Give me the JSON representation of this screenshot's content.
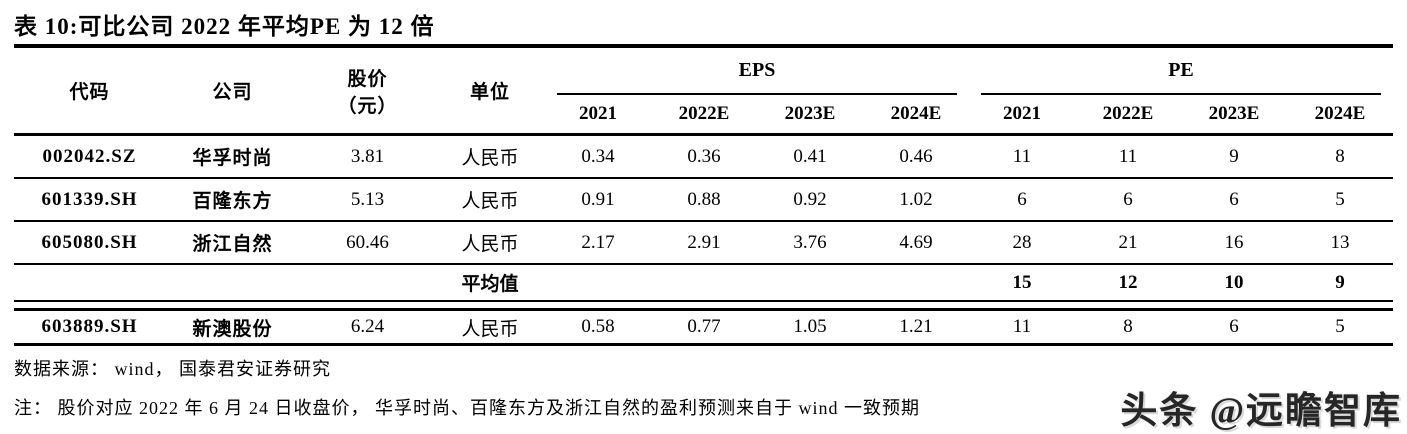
{
  "title": "表 10:可比公司 2022 年平均PE 为 12 倍",
  "table": {
    "headers": {
      "code": "代码",
      "company": "公司",
      "price_line1": "股价",
      "price_line2": "（元）",
      "unit": "单位",
      "eps_group": "EPS",
      "pe_group": "PE",
      "years": [
        "2021",
        "2022E",
        "2023E",
        "2024E"
      ]
    },
    "rows": [
      {
        "code": "002042.SZ",
        "company": "华孚时尚",
        "price": "3.81",
        "unit": "人民币",
        "eps": [
          "0.34",
          "0.36",
          "0.41",
          "0.46"
        ],
        "pe": [
          "11",
          "11",
          "9",
          "8"
        ]
      },
      {
        "code": "601339.SH",
        "company": "百隆东方",
        "price": "5.13",
        "unit": "人民币",
        "eps": [
          "0.91",
          "0.88",
          "0.92",
          "1.02"
        ],
        "pe": [
          "6",
          "6",
          "6",
          "5"
        ]
      },
      {
        "code": "605080.SH",
        "company": "浙江自然",
        "price": "60.46",
        "unit": "人民币",
        "eps": [
          "2.17",
          "2.91",
          "3.76",
          "4.69"
        ],
        "pe": [
          "28",
          "21",
          "16",
          "13"
        ]
      }
    ],
    "average_row": {
      "label": "平均值",
      "pe": [
        "15",
        "12",
        "10",
        "9"
      ]
    },
    "highlight_row": {
      "code": "603889.SH",
      "company": "新澳股份",
      "price": "6.24",
      "unit": "人民币",
      "eps": [
        "0.58",
        "0.77",
        "1.05",
        "1.21"
      ],
      "pe": [
        "11",
        "8",
        "6",
        "5"
      ]
    }
  },
  "source": "数据来源： wind， 国泰君安证券研究",
  "note": "注： 股价对应 2022 年 6 月 24 日收盘价， 华孚时尚、百隆东方及浙江自然的盈利预测来自于 wind 一致预期",
  "watermark": "头条 @远瞻智库",
  "colors": {
    "text": "#000000",
    "background": "#ffffff",
    "watermark": "#262626"
  }
}
